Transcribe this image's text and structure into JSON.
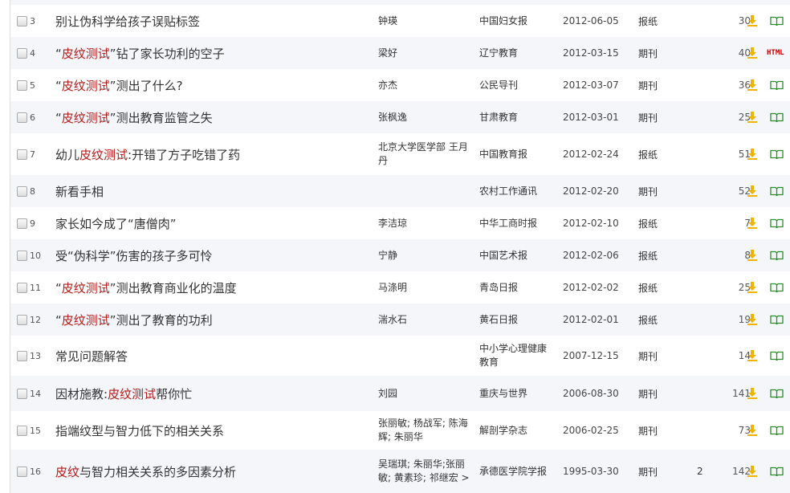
{
  "colors": {
    "highlight": "#b51a1a",
    "row_alt": "#f4f6fa",
    "download_icon": "#f0b400",
    "read_icon": "#2e8b2e"
  },
  "rows": [
    {
      "num": "3",
      "title": [
        {
          "t": "别让伪科学给孩子误贴标签"
        }
      ],
      "author": "钟瑛",
      "source": "中国妇女报",
      "date": "2012-06-05",
      "type": "报纸",
      "cited": "",
      "downloads": "30",
      "read": "read-icon"
    },
    {
      "num": "4",
      "title": [
        {
          "t": "“"
        },
        {
          "t": "皮纹测试",
          "h": true
        },
        {
          "t": "”钻了家长功利的空子"
        }
      ],
      "author": "梁好",
      "source": "辽宁教育",
      "date": "2012-03-15",
      "type": "期刊",
      "cited": "",
      "downloads": "40",
      "read": "HTML"
    },
    {
      "num": "5",
      "title": [
        {
          "t": "“"
        },
        {
          "t": "皮纹测试",
          "h": true
        },
        {
          "t": "”测出了什么?"
        }
      ],
      "author": "亦杰",
      "source": "公民导刊",
      "date": "2012-03-07",
      "type": "期刊",
      "cited": "",
      "downloads": "36",
      "read": "read-icon"
    },
    {
      "num": "6",
      "title": [
        {
          "t": "“"
        },
        {
          "t": "皮纹测试",
          "h": true
        },
        {
          "t": "”测出教育监管之失"
        }
      ],
      "author": "张枫逸",
      "source": "甘肃教育",
      "date": "2012-03-01",
      "type": "期刊",
      "cited": "",
      "downloads": "25",
      "read": "read-icon"
    },
    {
      "num": "7",
      "title": [
        {
          "t": "幼儿"
        },
        {
          "t": "皮纹测试",
          "h": true
        },
        {
          "t": ":开错了方子吃错了药"
        }
      ],
      "author": "北京大学医学部 王月丹",
      "source": "中国教育报",
      "date": "2012-02-24",
      "type": "报纸",
      "cited": "",
      "downloads": "51",
      "read": "read-icon"
    },
    {
      "num": "8",
      "title": [
        {
          "t": "新看手相"
        }
      ],
      "author": "",
      "source": "农村工作通讯",
      "date": "2012-02-20",
      "type": "期刊",
      "cited": "",
      "downloads": "52",
      "read": "read-icon"
    },
    {
      "num": "9",
      "title": [
        {
          "t": "家长如今成了“唐僧肉”"
        }
      ],
      "author": "李洁琼",
      "source": "中华工商时报",
      "date": "2012-02-10",
      "type": "报纸",
      "cited": "",
      "downloads": "7",
      "read": "read-icon"
    },
    {
      "num": "10",
      "title": [
        {
          "t": "受“伪科学”伤害的孩子多可怜"
        }
      ],
      "author": "宁静",
      "source": "中国艺术报",
      "date": "2012-02-06",
      "type": "报纸",
      "cited": "",
      "downloads": "8",
      "read": "read-icon"
    },
    {
      "num": "11",
      "title": [
        {
          "t": "“"
        },
        {
          "t": "皮纹测试",
          "h": true
        },
        {
          "t": "”测出教育商业化的温度"
        }
      ],
      "author": "马涤明",
      "source": "青岛日报",
      "date": "2012-02-02",
      "type": "报纸",
      "cited": "",
      "downloads": "25",
      "read": "read-icon"
    },
    {
      "num": "12",
      "title": [
        {
          "t": "“"
        },
        {
          "t": "皮纹测试",
          "h": true
        },
        {
          "t": "”测出了教育的功利"
        }
      ],
      "author": "湍水石",
      "source": "黄石日报",
      "date": "2012-02-01",
      "type": "报纸",
      "cited": "",
      "downloads": "19",
      "read": "read-icon"
    },
    {
      "num": "13",
      "title": [
        {
          "t": "常见问题解答"
        }
      ],
      "author": "",
      "source": "中小学心理健康教育",
      "date": "2007-12-15",
      "type": "期刊",
      "cited": "",
      "downloads": "14",
      "read": "read-icon"
    },
    {
      "num": "14",
      "title": [
        {
          "t": "因材施教:"
        },
        {
          "t": "皮纹测试",
          "h": true
        },
        {
          "t": "帮你忙"
        }
      ],
      "author": "刘园",
      "source": "重庆与世界",
      "date": "2006-08-30",
      "type": "期刊",
      "cited": "",
      "downloads": "141",
      "read": "read-icon"
    },
    {
      "num": "15",
      "title": [
        {
          "t": "指端纹型与智力低下的相关关系"
        }
      ],
      "author": "张丽敏; 杨战军; 陈海辉; 朱丽华",
      "source": "解剖学杂志",
      "date": "2006-02-25",
      "type": "期刊",
      "cited": "",
      "downloads": "73",
      "read": "read-icon"
    },
    {
      "num": "16",
      "title": [
        {
          "t": "皮纹",
          "h": true
        },
        {
          "t": "与智力相关关系的多因素分析"
        }
      ],
      "author": "吴瑞琪; 朱丽华;张丽敏; 黄素珍; 祁继宏 >",
      "source": "承德医学院学报",
      "date": "1995-03-30",
      "type": "期刊",
      "cited": "2",
      "downloads": "142",
      "read": "read-icon"
    }
  ]
}
